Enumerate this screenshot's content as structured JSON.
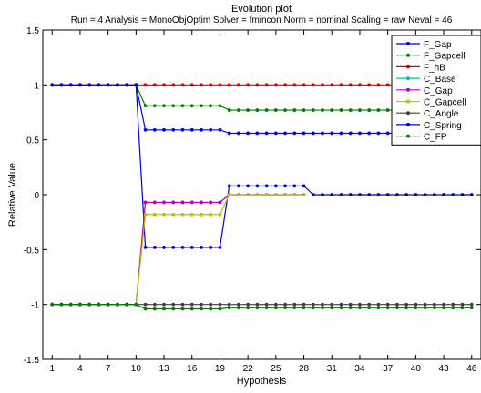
{
  "chart_data": {
    "type": "line",
    "title": "Evolution plot",
    "subtitle": "Run = 4  Analysis = MonoObjOptim  Solver = fmincon  Norm = nominal  Scaling = raw  Neval = 46",
    "xlabel": "Hypothesis",
    "ylabel": "Relative Value",
    "xlim": [
      0,
      47
    ],
    "ylim": [
      -1.5,
      1.5
    ],
    "x_ticks": [
      1,
      4,
      7,
      10,
      13,
      16,
      19,
      22,
      25,
      28,
      31,
      34,
      37,
      40,
      43,
      46
    ],
    "y_ticks": [
      -1.5,
      -1,
      -0.5,
      0,
      0.5,
      1,
      1.5
    ],
    "y_tick_labels": [
      "-1.5",
      "-1",
      "-0.5",
      "0",
      "0.5",
      "1",
      "1.5"
    ],
    "x_tick_labels": [
      "1",
      "4",
      "7",
      "10",
      "13",
      "16",
      "19",
      "22",
      "25",
      "28",
      "31",
      "34",
      "37",
      "40",
      "43",
      "46"
    ],
    "grid": false,
    "legend_position": "top-right",
    "series": [
      {
        "name": "F_Gap",
        "color": "#0000cc",
        "segments": [
          {
            "from": 1,
            "to": 10,
            "value": 1
          },
          {
            "from": 11,
            "to": 19,
            "value": -0.48
          },
          {
            "from": 20,
            "to": 28,
            "value": 0.08
          },
          {
            "from": 29,
            "to": 46,
            "value": 0
          }
        ]
      },
      {
        "name": "F_Gapcell",
        "color": "#008000",
        "segments": [
          {
            "from": 1,
            "to": 10,
            "value": 1
          },
          {
            "from": 11,
            "to": 19,
            "value": 0.81
          },
          {
            "from": 20,
            "to": 46,
            "value": 0.77
          }
        ]
      },
      {
        "name": "F_hB",
        "color": "#dd0000",
        "segments": [
          {
            "from": 1,
            "to": 46,
            "value": 1
          }
        ]
      },
      {
        "name": "C_Base",
        "color": "#00bfbf",
        "segments": [
          {
            "from": 1,
            "to": 10,
            "value": -1
          },
          {
            "from": 11,
            "to": 19,
            "value": -0.07
          },
          {
            "from": 20,
            "to": 28,
            "value": 0
          }
        ]
      },
      {
        "name": "C_Gap",
        "color": "#bf00bf",
        "segments": [
          {
            "from": 1,
            "to": 10,
            "value": -1
          },
          {
            "from": 11,
            "to": 19,
            "value": -0.07
          },
          {
            "from": 20,
            "to": 28,
            "value": 0
          }
        ]
      },
      {
        "name": "C_Gapcell",
        "color": "#bfbf00",
        "segments": [
          {
            "from": 1,
            "to": 10,
            "value": -1
          },
          {
            "from": 11,
            "to": 19,
            "value": -0.18
          },
          {
            "from": 20,
            "to": 28,
            "value": 0
          }
        ]
      },
      {
        "name": "C_Angle",
        "color": "#404040",
        "segments": [
          {
            "from": 1,
            "to": 46,
            "value": -1
          }
        ]
      },
      {
        "name": "C_Spring",
        "color": "#0000ff",
        "segments": [
          {
            "from": 1,
            "to": 10,
            "value": 1
          },
          {
            "from": 11,
            "to": 19,
            "value": 0.59
          },
          {
            "from": 20,
            "to": 46,
            "value": 0.56
          }
        ]
      },
      {
        "name": "C_FP",
        "color": "#008000",
        "segments": [
          {
            "from": 1,
            "to": 10,
            "value": -1
          },
          {
            "from": 11,
            "to": 19,
            "value": -1.04
          },
          {
            "from": 20,
            "to": 46,
            "value": -1.03
          }
        ]
      }
    ]
  }
}
